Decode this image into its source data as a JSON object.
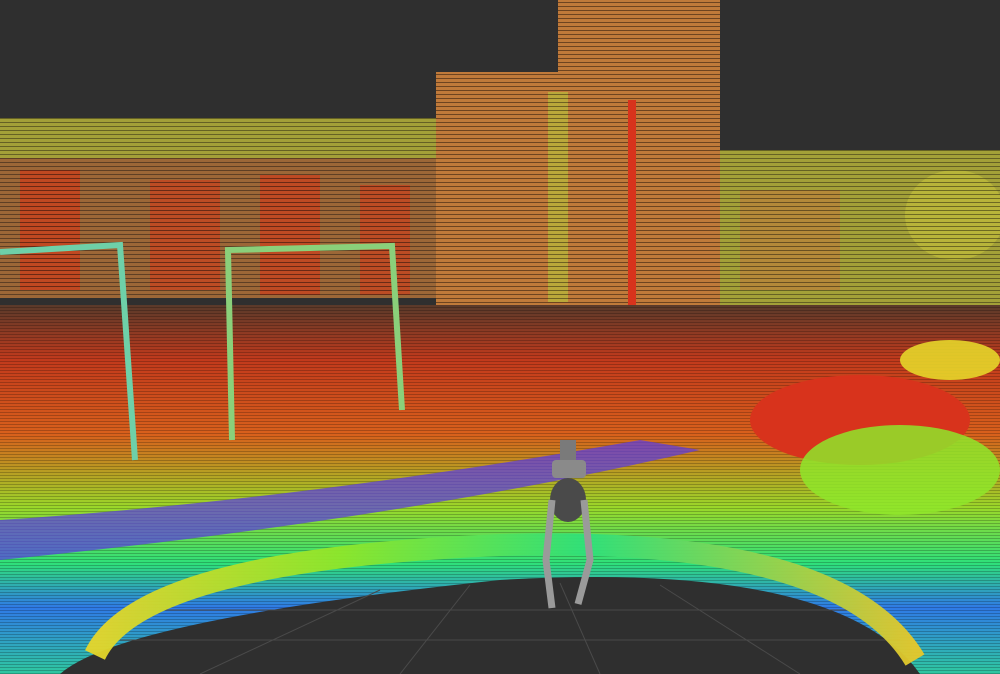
{
  "viewer": {
    "background_color": "#2f2f2f",
    "grid_color": "#4a4a4a",
    "intensity_palette": [
      "#8a1fd6",
      "#3a5cff",
      "#1fb4e6",
      "#2fe07a",
      "#8fe62a",
      "#e6d62a",
      "#f29a22",
      "#e8331c"
    ]
  },
  "scene": {
    "icons": {
      "robot": "bipedal-robot",
      "goal": "soccer-goal",
      "tree": "tree-cluster",
      "building": "building-block"
    }
  }
}
